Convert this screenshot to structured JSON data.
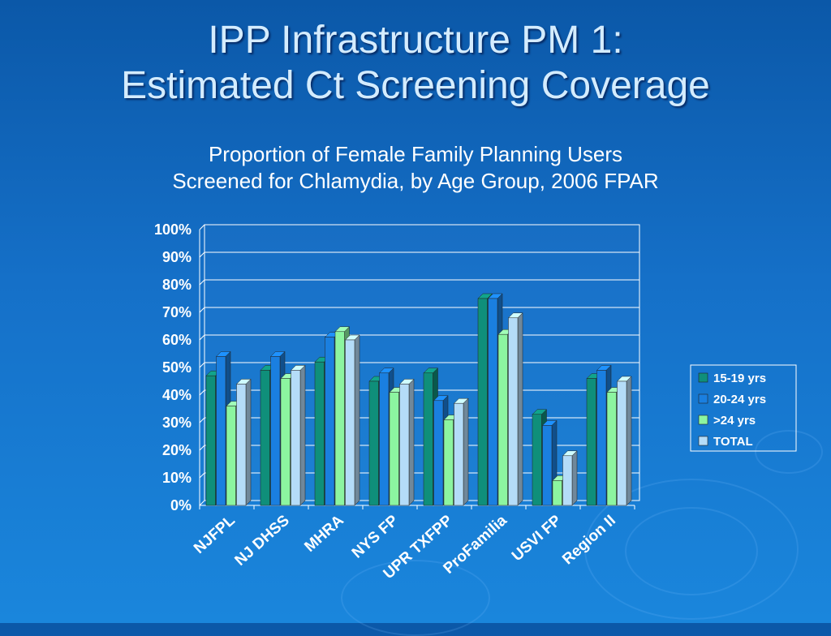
{
  "slide": {
    "title_line1": "IPP Infrastructure PM 1:",
    "title_line2": "Estimated Ct Screening Coverage",
    "subtitle_line1": "Proportion of Female Family Planning Users",
    "subtitle_line2": "Screened for Chlamydia, by Age Group, 2006 FPAR"
  },
  "chart_data": {
    "type": "bar",
    "categories": [
      "NJFPL",
      "NJ DHSS",
      "MHRA",
      "NYS FP",
      "UPR TXFPP",
      "ProFamilia",
      "USVI FP",
      "Region II"
    ],
    "series": [
      {
        "name": "15-19 yrs",
        "color": "#0f8f7a",
        "values": [
          47,
          49,
          52,
          45,
          48,
          75,
          33,
          46
        ]
      },
      {
        "name": "20-24 yrs",
        "color": "#1a7fe0",
        "values": [
          54,
          54,
          61,
          48,
          38,
          75,
          29,
          49
        ]
      },
      {
        "name": ">24 yrs",
        "color": "#8cf5a0",
        "values": [
          36,
          46,
          63,
          41,
          31,
          62,
          9,
          41
        ]
      },
      {
        "name": "TOTAL",
        "color": "#b4dcf8",
        "values": [
          44,
          49,
          60,
          44,
          37,
          68,
          18,
          45
        ]
      }
    ],
    "y_ticks": [
      "0%",
      "10%",
      "20%",
      "30%",
      "40%",
      "50%",
      "60%",
      "70%",
      "80%",
      "90%",
      "100%"
    ],
    "ylim": [
      0,
      100
    ],
    "grid": true,
    "legend_position": "right"
  }
}
